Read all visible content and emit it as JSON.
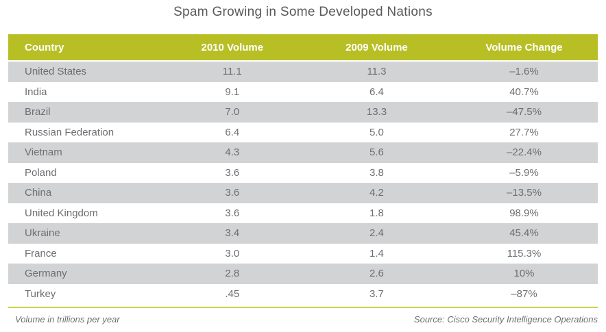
{
  "title": "Spam Growing in Some Developed Nations",
  "colors": {
    "header_bg": "#b8bf25",
    "header_text": "#ffffff",
    "row_alt_bg": "#d1d3d4",
    "row_bg": "#ffffff",
    "body_text": "#6d6e71",
    "title_text": "#58595b",
    "footer_rule": "#ccd14f"
  },
  "table": {
    "columns": [
      "Country",
      "2010 Volume",
      "2009 Volume",
      "Volume Change"
    ],
    "rows": [
      [
        "United States",
        "11.1",
        "11.3",
        "–1.6%"
      ],
      [
        "India",
        "9.1",
        "6.4",
        "40.7%"
      ],
      [
        "Brazil",
        "7.0",
        "13.3",
        "–47.5%"
      ],
      [
        "Russian Federation",
        "6.4",
        "5.0",
        "27.7%"
      ],
      [
        "Vietnam",
        "4.3",
        "5.6",
        "–22.4%"
      ],
      [
        "Poland",
        "3.6",
        "3.8",
        "–5.9%"
      ],
      [
        "China",
        "3.6",
        "4.2",
        "–13.5%"
      ],
      [
        "United Kingdom",
        "3.6",
        "1.8",
        "98.9%"
      ],
      [
        "Ukraine",
        "3.4",
        "2.4",
        "45.4%"
      ],
      [
        "France",
        "3.0",
        "1.4",
        "115.3%"
      ],
      [
        "Germany",
        "2.8",
        "2.6",
        "10%"
      ],
      [
        "Turkey",
        ".45",
        "3.7",
        "–87%"
      ]
    ]
  },
  "footer": {
    "note": "Volume in trillions per year",
    "source": "Source: Cisco Security Intelligence Operations"
  },
  "chart_data": {
    "type": "table",
    "title": "Spam Growing in Some Developed Nations",
    "columns": [
      "Country",
      "2010 Volume",
      "2009 Volume",
      "Volume Change"
    ],
    "categories": [
      "United States",
      "India",
      "Brazil",
      "Russian Federation",
      "Vietnam",
      "Poland",
      "China",
      "United Kingdom",
      "Ukraine",
      "France",
      "Germany",
      "Turkey"
    ],
    "series": [
      {
        "name": "2010 Volume",
        "values": [
          11.1,
          9.1,
          7.0,
          6.4,
          4.3,
          3.6,
          3.6,
          3.6,
          3.4,
          3.0,
          2.8,
          0.45
        ]
      },
      {
        "name": "2009 Volume",
        "values": [
          11.3,
          6.4,
          13.3,
          5.0,
          5.6,
          3.8,
          4.2,
          1.8,
          2.4,
          1.4,
          2.6,
          3.7
        ]
      },
      {
        "name": "Volume Change",
        "values": [
          "–1.6%",
          "40.7%",
          "–47.5%",
          "27.7%",
          "–22.4%",
          "–5.9%",
          "–13.5%",
          "98.9%",
          "45.4%",
          "115.3%",
          "10%",
          "–87%"
        ]
      }
    ],
    "unit_note": "Volume in trillions per year",
    "source": "Source: Cisco Security Intelligence Operations"
  }
}
